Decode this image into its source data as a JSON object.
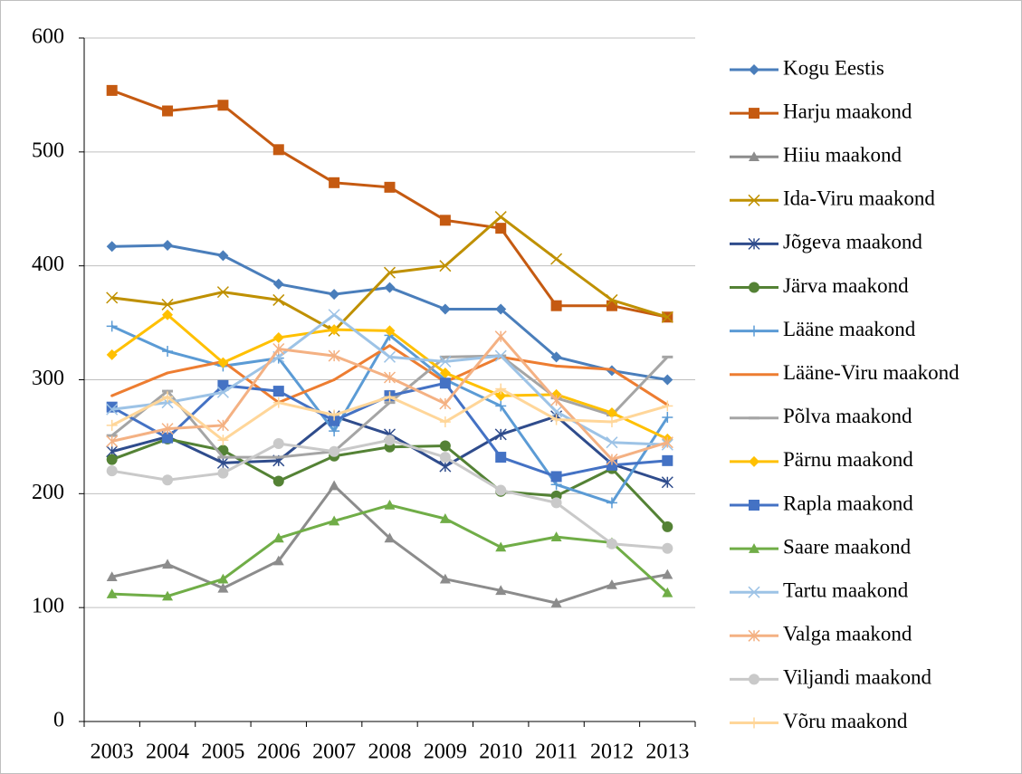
{
  "chart_data": {
    "type": "line",
    "categories": [
      "2003",
      "2004",
      "2005",
      "2006",
      "2007",
      "2008",
      "2009",
      "2010",
      "2011",
      "2012",
      "2013"
    ],
    "ylim": [
      0,
      600
    ],
    "yticks": [
      0,
      100,
      200,
      300,
      400,
      500,
      600
    ],
    "grid": true,
    "legend": "right",
    "series": [
      {
        "name": "Kogu Eestis",
        "color": "#4a7ebb",
        "marker": "diamond",
        "values": [
          417,
          418,
          409,
          384,
          375,
          381,
          362,
          362,
          320,
          308,
          300
        ]
      },
      {
        "name": "Harju maakond",
        "color": "#c55a11",
        "marker": "square",
        "values": [
          554,
          536,
          541,
          502,
          473,
          469,
          440,
          433,
          365,
          365,
          355
        ]
      },
      {
        "name": "Hiiu maakond",
        "color": "#8c8c8c",
        "marker": "triangle",
        "values": [
          127,
          138,
          117,
          141,
          207,
          161,
          125,
          115,
          104,
          120,
          129
        ]
      },
      {
        "name": "Ida-Viru maakond",
        "color": "#bf9000",
        "marker": "x",
        "values": [
          372,
          366,
          377,
          370,
          343,
          394,
          400,
          443,
          406,
          370,
          355
        ]
      },
      {
        "name": "Jõgeva maakond",
        "color": "#2f4c8c",
        "marker": "star",
        "values": [
          237,
          250,
          227,
          229,
          268,
          252,
          224,
          252,
          268,
          226,
          210
        ]
      },
      {
        "name": "Järva maakond",
        "color": "#548235",
        "marker": "circle",
        "values": [
          230,
          248,
          238,
          211,
          233,
          241,
          242,
          202,
          198,
          222,
          171
        ]
      },
      {
        "name": "Lääne maakond",
        "color": "#5b9bd5",
        "marker": "plus",
        "values": [
          347,
          325,
          312,
          319,
          255,
          339,
          300,
          277,
          208,
          192,
          267
        ]
      },
      {
        "name": "Lääne-Viru maakond",
        "color": "#ed7d31",
        "marker": "none",
        "values": [
          286,
          306,
          316,
          280,
          300,
          330,
          298,
          320,
          312,
          309,
          278
        ]
      },
      {
        "name": "Põlva maakond",
        "color": "#a5a5a5",
        "marker": "dash",
        "values": [
          251,
          290,
          232,
          232,
          237,
          280,
          320,
          321,
          284,
          269,
          320
        ]
      },
      {
        "name": "Pärnu maakond",
        "color": "#ffc000",
        "marker": "diamond",
        "values": [
          322,
          357,
          315,
          337,
          344,
          343,
          306,
          286,
          287,
          271,
          248
        ]
      },
      {
        "name": "Rapla maakond",
        "color": "#4472c4",
        "marker": "square",
        "values": [
          276,
          249,
          295,
          290,
          264,
          286,
          297,
          232,
          215,
          225,
          229
        ]
      },
      {
        "name": "Saare maakond",
        "color": "#70ad47",
        "marker": "triangle",
        "values": [
          112,
          110,
          125,
          161,
          176,
          190,
          178,
          153,
          162,
          157,
          113
        ]
      },
      {
        "name": "Tartu maakond",
        "color": "#9dc3e6",
        "marker": "x",
        "values": [
          274,
          280,
          289,
          320,
          357,
          320,
          316,
          321,
          272,
          245,
          243
        ]
      },
      {
        "name": "Valga maakond",
        "color": "#f4b183",
        "marker": "star",
        "values": [
          246,
          257,
          260,
          327,
          321,
          302,
          279,
          338,
          282,
          230,
          245
        ]
      },
      {
        "name": "Viljandi maakond",
        "color": "#c9c9c9",
        "marker": "circle",
        "values": [
          220,
          212,
          218,
          244,
          237,
          247,
          232,
          203,
          192,
          156,
          152
        ]
      },
      {
        "name": "Võru maakond",
        "color": "#ffd699",
        "marker": "plus",
        "values": [
          260,
          285,
          247,
          280,
          269,
          285,
          263,
          292,
          265,
          263,
          277
        ]
      }
    ]
  }
}
